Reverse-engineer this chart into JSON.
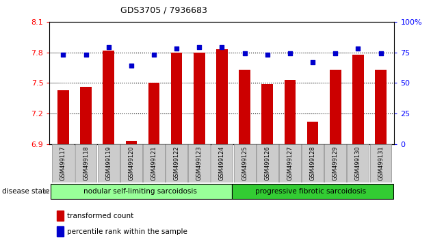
{
  "title": "GDS3705 / 7936683",
  "samples": [
    "GSM499117",
    "GSM499118",
    "GSM499119",
    "GSM499120",
    "GSM499121",
    "GSM499122",
    "GSM499123",
    "GSM499124",
    "GSM499125",
    "GSM499126",
    "GSM499127",
    "GSM499128",
    "GSM499129",
    "GSM499130",
    "GSM499131"
  ],
  "red_values": [
    7.43,
    7.46,
    7.82,
    6.93,
    7.5,
    7.8,
    7.8,
    7.83,
    7.63,
    7.49,
    7.53,
    7.12,
    7.63,
    7.78,
    7.63
  ],
  "blue_values": [
    73,
    73,
    79,
    64,
    73,
    78,
    79,
    79,
    74,
    73,
    74,
    67,
    74,
    78,
    74
  ],
  "ylim_left": [
    6.9,
    8.1
  ],
  "ylim_right": [
    0,
    100
  ],
  "yticks_left": [
    6.9,
    7.2,
    7.5,
    7.8,
    8.1
  ],
  "yticks_right": [
    0,
    25,
    50,
    75,
    100
  ],
  "hgrid_lines": [
    7.2,
    7.5,
    7.8
  ],
  "group1_label": "nodular self-limiting sarcoidosis",
  "group2_label": "progressive fibrotic sarcoidosis",
  "group1_count": 8,
  "disease_state_label": "disease state",
  "legend_red": "transformed count",
  "legend_blue": "percentile rank within the sample",
  "bar_color": "#cc0000",
  "dot_color": "#0000cc",
  "group1_color": "#99ff99",
  "group2_color": "#33cc33",
  "tick_label_bg": "#cccccc",
  "bar_width": 0.5,
  "dot_size": 18
}
